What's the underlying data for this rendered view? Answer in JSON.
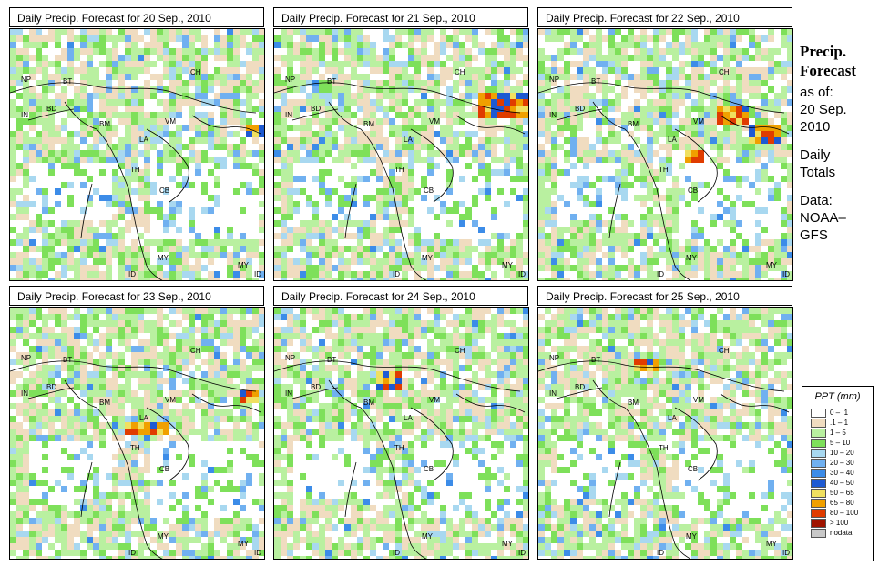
{
  "panels": [
    {
      "title": "Daily Precip. Forecast for  20 Sep., 2010"
    },
    {
      "title": "Daily Precip. Forecast for  21 Sep., 2010"
    },
    {
      "title": "Daily Precip. Forecast for  22 Sep., 2010"
    },
    {
      "title": "Daily Precip. Forecast for  23 Sep., 2010"
    },
    {
      "title": "Daily Precip. Forecast for  24 Sep., 2010"
    },
    {
      "title": "Daily Precip. Forecast for  25 Sep., 2010"
    }
  ],
  "country_labels": [
    "NP",
    "BT",
    "BD",
    "IN",
    "BM",
    "CH",
    "VM",
    "LA",
    "TH",
    "CB",
    "MY",
    "ID",
    "MY",
    "ID"
  ],
  "sidebar": {
    "title_line1": "Precip.",
    "title_line2": "Forecast",
    "asof_line1": "as of:",
    "asof_line2": "20 Sep.",
    "asof_line3": "2010",
    "daily_line1": "Daily",
    "daily_line2": "Totals",
    "data_line1": "Data:",
    "data_line2": "NOAA–",
    "data_line3": "GFS"
  },
  "legend": {
    "title": "PPT (mm)",
    "items": [
      {
        "label": "0 – .1",
        "color": "#ffffff"
      },
      {
        "label": ".1 – 1",
        "color": "#f0dcc0"
      },
      {
        "label": "1 – 5",
        "color": "#b9f0a0"
      },
      {
        "label": "5 – 10",
        "color": "#7ee05a"
      },
      {
        "label": "10 – 20",
        "color": "#a8d8f0"
      },
      {
        "label": "20 – 30",
        "color": "#70b0f0"
      },
      {
        "label": "30 – 40",
        "color": "#3c8ce8"
      },
      {
        "label": "40 – 50",
        "color": "#1e5ad2"
      },
      {
        "label": "50 – 65",
        "color": "#f0e060"
      },
      {
        "label": "65 – 80",
        "color": "#f0a000"
      },
      {
        "label": "80 – 100",
        "color": "#e03c00"
      },
      {
        "label": "> 100",
        "color": "#a01400"
      },
      {
        "label": "nodata",
        "color": "#c8c8c8"
      }
    ]
  }
}
